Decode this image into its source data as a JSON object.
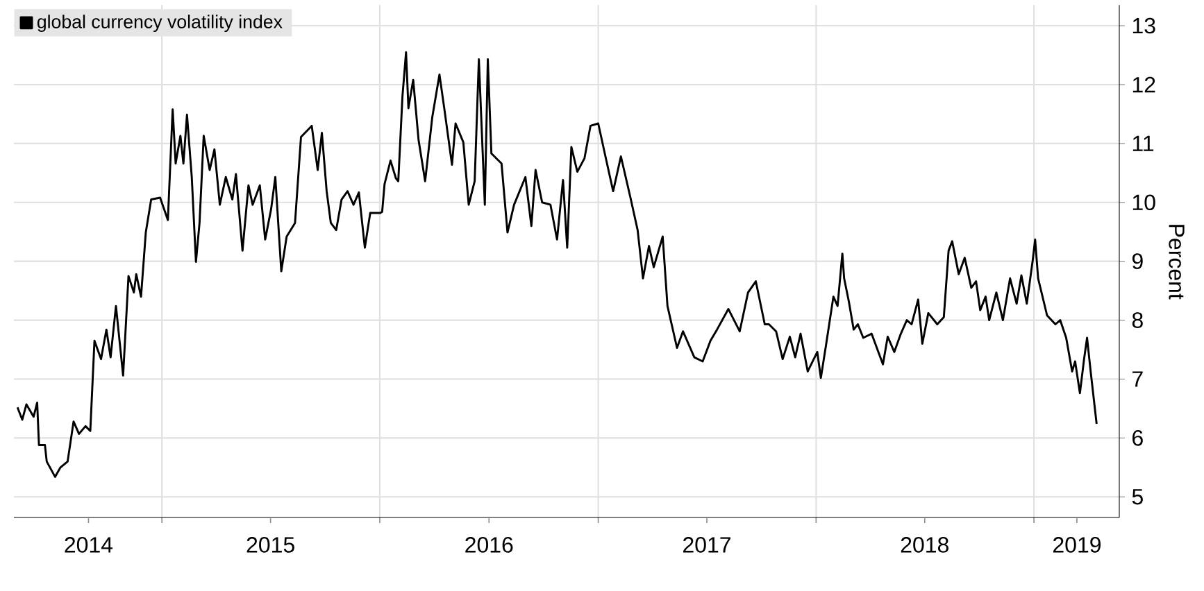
{
  "chart_data": {
    "type": "line",
    "ylabel": "Percent",
    "legend": "top left",
    "grid": true,
    "series": [
      {
        "name": "global currency volatility index",
        "color": "#000000",
        "x": [
          "2014-05-04",
          "2014-05-12",
          "2014-05-19",
          "2014-05-31",
          "2014-06-06",
          "2014-06-09",
          "2014-06-19",
          "2014-06-22",
          "2014-07-06",
          "2014-07-15",
          "2014-07-27",
          "2014-08-06",
          "2014-08-15",
          "2014-08-26",
          "2014-09-03",
          "2014-09-10",
          "2014-09-21",
          "2014-09-30",
          "2014-10-07",
          "2014-10-16",
          "2014-10-28",
          "2014-11-06",
          "2014-11-15",
          "2014-11-19",
          "2014-11-27",
          "2014-12-05",
          "2014-12-14",
          "2014-12-29",
          "2015-01-11",
          "2015-01-19",
          "2015-01-24",
          "2015-02-01",
          "2015-02-06",
          "2015-02-12",
          "2015-02-20",
          "2015-02-27",
          "2015-03-05",
          "2015-03-12",
          "2015-03-22",
          "2015-03-30",
          "2015-04-08",
          "2015-04-18",
          "2015-04-29",
          "2015-05-05",
          "2015-05-16",
          "2015-05-26",
          "2015-06-02",
          "2015-06-14",
          "2015-06-23",
          "2015-07-03",
          "2015-07-10",
          "2015-07-20",
          "2015-07-29",
          "2015-08-12",
          "2015-08-22",
          "2015-09-09",
          "2015-09-19",
          "2015-09-26",
          "2015-10-04",
          "2015-10-11",
          "2015-10-20",
          "2015-10-29",
          "2015-11-08",
          "2015-11-18",
          "2015-11-27",
          "2015-12-07",
          "2015-12-16",
          "2016-01-02",
          "2016-01-05",
          "2016-01-09",
          "2016-01-19",
          "2016-01-28",
          "2016-02-01",
          "2016-02-08",
          "2016-02-14",
          "2016-02-18",
          "2016-02-26",
          "2016-03-06",
          "2016-03-17",
          "2016-03-29",
          "2016-04-10",
          "2016-04-18",
          "2016-05-01",
          "2016-05-07",
          "2016-05-20",
          "2016-05-29",
          "2016-06-08",
          "2016-06-15",
          "2016-06-25",
          "2016-06-30",
          "2016-07-06",
          "2016-07-23",
          "2016-08-02",
          "2016-08-13",
          "2016-09-01",
          "2016-09-11",
          "2016-09-18",
          "2016-09-29",
          "2016-10-13",
          "2016-10-24",
          "2016-11-03",
          "2016-11-10",
          "2016-11-17",
          "2016-11-27",
          "2016-12-09",
          "2016-12-19",
          "2017-01-01",
          "2017-01-12",
          "2017-01-26",
          "2017-02-08",
          "2017-02-24",
          "2017-03-08",
          "2017-03-17",
          "2017-03-27",
          "2017-04-04",
          "2017-04-19",
          "2017-04-27",
          "2017-05-13",
          "2017-05-23",
          "2017-06-11",
          "2017-06-25",
          "2017-07-08",
          "2017-07-19",
          "2017-08-07",
          "2017-08-26",
          "2017-09-09",
          "2017-09-22",
          "2017-10-07",
          "2017-10-14",
          "2017-10-26",
          "2017-11-06",
          "2017-11-18",
          "2017-11-27",
          "2017-12-06",
          "2017-12-18",
          "2018-01-03",
          "2018-01-09",
          "2018-01-18",
          "2018-01-30",
          "2018-02-06",
          "2018-02-14",
          "2018-02-17",
          "2018-02-25",
          "2018-03-05",
          "2018-03-12",
          "2018-03-21",
          "2018-04-04",
          "2018-04-23",
          "2018-05-01",
          "2018-05-12",
          "2018-05-23",
          "2018-06-02",
          "2018-06-10",
          "2018-06-21",
          "2018-06-28",
          "2018-07-08",
          "2018-07-23",
          "2018-08-03",
          "2018-08-11",
          "2018-08-17",
          "2018-08-28",
          "2018-09-07",
          "2018-09-18",
          "2018-09-26",
          "2018-10-03",
          "2018-10-12",
          "2018-10-18",
          "2018-10-30",
          "2018-11-10",
          "2018-11-22",
          "2018-12-03",
          "2018-12-11",
          "2018-12-20",
          "2018-12-30",
          "2019-01-03",
          "2019-01-08",
          "2019-01-23",
          "2019-02-06",
          "2019-02-14",
          "2019-02-24",
          "2019-03-06",
          "2019-03-11",
          "2019-03-19",
          "2019-03-26",
          "2019-03-31",
          "2019-04-06",
          "2019-04-16"
        ],
        "values": [
          6.52,
          6.31,
          6.57,
          6.36,
          6.6,
          5.88,
          5.88,
          5.6,
          5.34,
          5.5,
          5.6,
          6.28,
          6.07,
          6.2,
          6.12,
          7.65,
          7.34,
          7.84,
          7.37,
          8.24,
          7.06,
          8.75,
          8.47,
          8.78,
          8.4,
          9.49,
          10.05,
          10.08,
          9.7,
          11.58,
          10.66,
          11.13,
          10.66,
          11.49,
          10.43,
          8.99,
          9.65,
          11.13,
          10.55,
          10.9,
          9.96,
          10.43,
          10.05,
          10.48,
          9.18,
          10.29,
          9.96,
          10.29,
          9.37,
          9.89,
          10.43,
          8.83,
          9.42,
          9.65,
          11.11,
          11.3,
          10.55,
          11.18,
          10.19,
          9.65,
          9.53,
          10.05,
          10.19,
          9.96,
          10.17,
          9.23,
          9.82,
          9.82,
          9.84,
          10.31,
          10.71,
          10.41,
          10.36,
          11.8,
          12.55,
          11.6,
          12.08,
          11.06,
          10.36,
          11.45,
          12.17,
          11.6,
          10.64,
          11.34,
          11.02,
          9.96,
          10.36,
          12.43,
          9.96,
          12.43,
          10.83,
          10.66,
          9.49,
          9.96,
          10.43,
          9.6,
          10.55,
          10.0,
          9.96,
          9.37,
          10.38,
          9.23,
          10.94,
          10.52,
          10.75,
          11.3,
          11.34,
          10.83,
          10.19,
          10.78,
          10.08,
          9.53,
          8.71,
          9.26,
          8.9,
          9.42,
          8.24,
          7.53,
          7.81,
          7.37,
          7.3,
          7.65,
          7.84,
          8.19,
          7.81,
          8.47,
          8.66,
          7.93,
          7.93,
          7.81,
          7.34,
          7.72,
          7.37,
          7.77,
          7.13,
          7.46,
          7.02,
          7.6,
          8.4,
          8.24,
          9.13,
          8.71,
          8.31,
          7.84,
          7.93,
          7.7,
          7.77,
          7.25,
          7.72,
          7.46,
          7.77,
          8.0,
          7.93,
          8.35,
          7.6,
          8.12,
          7.93,
          8.05,
          9.18,
          9.34,
          8.78,
          9.06,
          8.55,
          8.66,
          8.17,
          8.4,
          8.0,
          8.47,
          8.0,
          8.71,
          8.28,
          8.76,
          8.28,
          9.02,
          9.37,
          8.71,
          8.08,
          7.93,
          8.0,
          7.7,
          7.13,
          7.3,
          6.76,
          7.34,
          7.7,
          7.13,
          6.24
        ]
      }
    ],
    "xlim": [
      "2014-04-28",
      "2019-05-24"
    ],
    "xticks": [
      {
        "value": "2015-01-01",
        "label": null
      },
      {
        "value": "2016-01-01",
        "label": null
      },
      {
        "value": "2017-01-01",
        "label": null
      },
      {
        "value": "2018-01-01",
        "label": null
      },
      {
        "value": "2019-01-01",
        "label": null
      },
      {
        "value": "2014-08-31",
        "label": "2014"
      },
      {
        "value": "2015-07-02",
        "label": "2015"
      },
      {
        "value": "2016-07-02",
        "label": "2016"
      },
      {
        "value": "2017-07-02",
        "label": "2017"
      },
      {
        "value": "2018-07-02",
        "label": "2018"
      },
      {
        "value": "2019-03-14",
        "label": "2019"
      }
    ],
    "ylim": [
      4.65,
      13.35
    ],
    "yticks": [
      5,
      6,
      7,
      8,
      9,
      10,
      11,
      12,
      13
    ]
  }
}
